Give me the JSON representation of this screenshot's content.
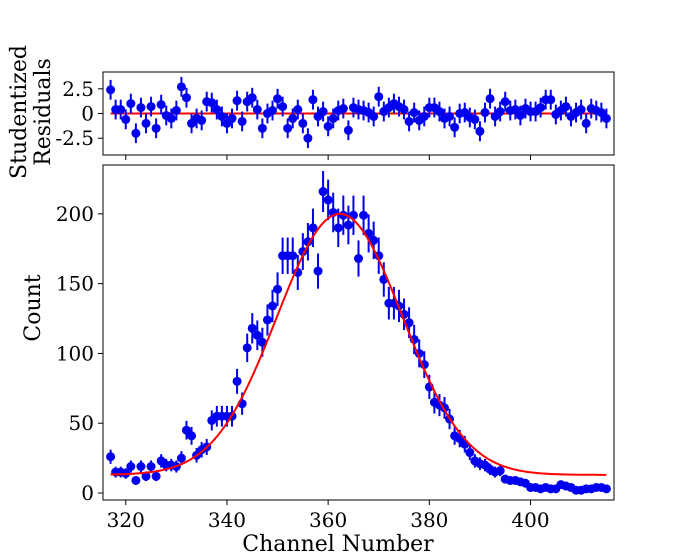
{
  "chart_data": [
    {
      "type": "scatter",
      "panel": "residuals",
      "ylabel": [
        "Studentized",
        "Residuals"
      ],
      "xlim": [
        315.5,
        416.5
      ],
      "ylim": [
        -4.2,
        4.2
      ],
      "yticks": [
        2.5,
        0,
        -2.5
      ],
      "ytick_labels": [
        "2.5",
        "0",
        "-2.5"
      ],
      "grid": false,
      "x": [
        317,
        318,
        319,
        320,
        321,
        322,
        323,
        324,
        325,
        326,
        327,
        328,
        329,
        330,
        331,
        332,
        333,
        334,
        335,
        336,
        337,
        338,
        339,
        340,
        341,
        342,
        343,
        344,
        345,
        346,
        347,
        348,
        349,
        350,
        351,
        352,
        353,
        354,
        355,
        356,
        357,
        358,
        359,
        360,
        361,
        362,
        363,
        364,
        365,
        366,
        367,
        368,
        369,
        370,
        371,
        372,
        373,
        374,
        375,
        376,
        377,
        378,
        379,
        380,
        381,
        382,
        383,
        384,
        385,
        386,
        387,
        388,
        389,
        390,
        391,
        392,
        393,
        394,
        395,
        396,
        397,
        398,
        399,
        400,
        401,
        402,
        403,
        404,
        405,
        406,
        407,
        408,
        409,
        410,
        411,
        412,
        413,
        414,
        415
      ],
      "residuals": [
        2.4,
        0.4,
        0.4,
        -0.6,
        1,
        -2,
        0.6,
        -1,
        0.7,
        -1.5,
        0.9,
        -0.2,
        -0.5,
        0.3,
        2.7,
        1.6,
        -1,
        -0.5,
        -0.7,
        1.2,
        1.1,
        0.4,
        -0.3,
        -1,
        -0.5,
        1.3,
        -0.8,
        1.2,
        1.6,
        0.4,
        -1.5,
        0,
        0.3,
        1.5,
        0.7,
        -1.5,
        -0.5,
        0.4,
        -1,
        -2.5,
        1.4,
        -0.3,
        0.2,
        -1.3,
        -0.5,
        0.3,
        0.5,
        -1.7,
        0.6,
        0.4,
        0.3,
        0.1,
        -0.3,
        1.7,
        0.2,
        0.6,
        1,
        0.7,
        0.4,
        -0.8,
        0.1,
        -0.7,
        -0.3,
        0.6,
        0.6,
        0.2,
        -0.5,
        -0.3,
        -1.4,
        0,
        0.1,
        -0.4,
        -0.6,
        -1.8,
        0.1,
        1.5,
        -0.3,
        0.2,
        1.2,
        0.3,
        0.4,
        -0.2,
        0.5,
        0.2,
        0.2,
        0.6,
        1.4,
        1.4,
        -0.1,
        0.3,
        0.7,
        -0.3,
        0.1,
        0.4,
        -1,
        0.5,
        0.3,
        0.1,
        -0.5
      ],
      "residual_errors": 1
    },
    {
      "type": "scatter",
      "panel": "main",
      "xlabel": "Channel Number",
      "ylabel": "Count",
      "xlim": [
        315.5,
        416.5
      ],
      "ylim": [
        -5,
        235
      ],
      "xticks": [
        320,
        340,
        360,
        380,
        400
      ],
      "xtick_labels": [
        "320",
        "340",
        "360",
        "380",
        "400"
      ],
      "yticks": [
        0,
        50,
        100,
        150,
        200
      ],
      "ytick_labels": [
        "0",
        "50",
        "100",
        "150",
        "200"
      ],
      "grid": false,
      "legend": "none",
      "series": [
        {
          "kind": "data",
          "x": [
            317,
            318,
            319,
            320,
            321,
            322,
            323,
            324,
            325,
            326,
            327,
            328,
            329,
            330,
            331,
            332,
            333,
            334,
            335,
            336,
            337,
            338,
            339,
            340,
            341,
            342,
            343,
            344,
            345,
            346,
            347,
            348,
            349,
            350,
            351,
            352,
            353,
            354,
            355,
            356,
            357,
            358,
            359,
            360,
            361,
            362,
            363,
            364,
            365,
            366,
            367,
            368,
            369,
            370,
            371,
            372,
            373,
            374,
            375,
            376,
            377,
            378,
            379,
            380,
            381,
            382,
            383,
            384,
            385,
            386,
            387,
            388,
            389,
            390,
            391,
            392,
            393,
            394,
            395,
            396,
            397,
            398,
            399,
            400,
            401,
            402,
            403,
            404,
            405,
            406,
            407,
            408,
            409,
            410,
            411,
            412,
            413,
            414,
            415
          ],
          "y": [
            26,
            15,
            15,
            14,
            19,
            9,
            19,
            12,
            19,
            12,
            23,
            20,
            20,
            19,
            25,
            45,
            41,
            27,
            31,
            33,
            52,
            55,
            55,
            55,
            55,
            80,
            64,
            104,
            118,
            113,
            108,
            124,
            134,
            146,
            170,
            170,
            170,
            158,
            173,
            180,
            190,
            159,
            216,
            210,
            201,
            190,
            199,
            192,
            199,
            168,
            199,
            186,
            181,
            170,
            153,
            136,
            136,
            134,
            128,
            122,
            110,
            100,
            92,
            76,
            65,
            63,
            61,
            53,
            41,
            39,
            35,
            29,
            23,
            21,
            20,
            17,
            15,
            16,
            10,
            9,
            9,
            8,
            7,
            4,
            4,
            3,
            4,
            3,
            3,
            6,
            5,
            4,
            2,
            2,
            3,
            3,
            4,
            4,
            3
          ],
          "err": "sqrt",
          "color": "#0000ee"
        },
        {
          "kind": "fit",
          "model": "gaussian",
          "amplitude": 187,
          "mean": 362.3,
          "sigma": 12.4,
          "offset": 13,
          "color": "#ff0000"
        }
      ]
    }
  ]
}
